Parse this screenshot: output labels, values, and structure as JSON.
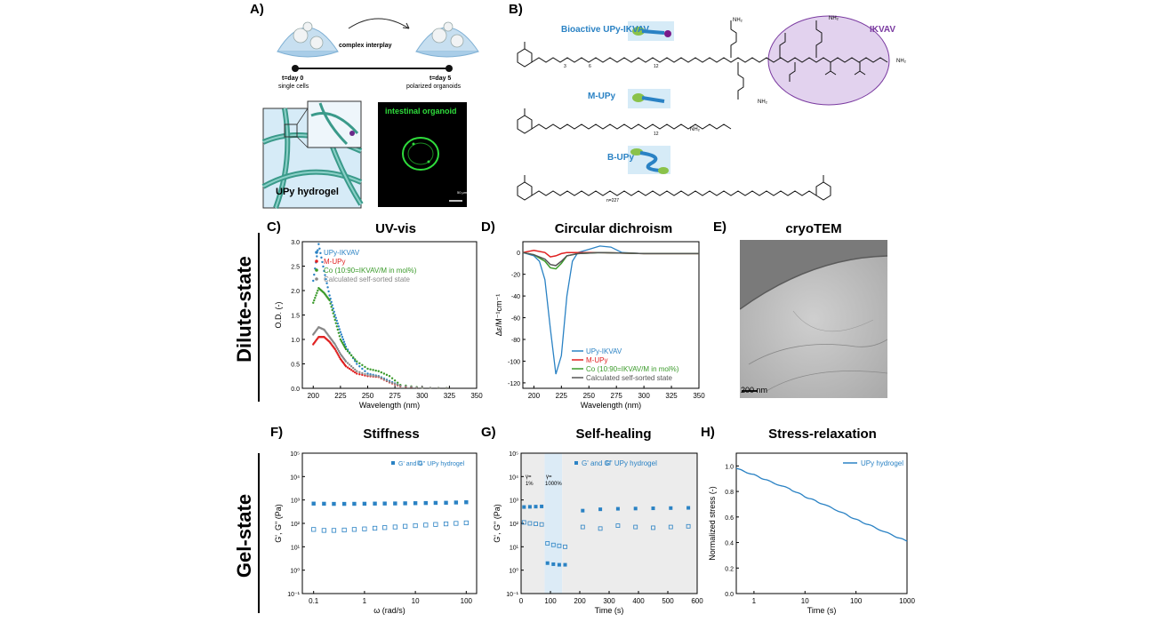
{
  "panelA": {
    "label": "A)",
    "interplay": "complex interplay",
    "t0": "t=day 0",
    "t0sub": "single cells",
    "t5": "t=day 5",
    "t5sub": "polarized organoids",
    "hydrogel": "UPy hydrogel",
    "organoid": "intestinal organoid",
    "scale": "50 µm"
  },
  "panelB": {
    "label": "B)",
    "m1": "Bioactive UPy-IKVAV",
    "m2": "M-UPy",
    "m3": "B-UPy",
    "ikvav": "IKVAV",
    "nh2": "NH₂",
    "sub12": "12",
    "sub227": "n=227",
    "sub3": "3",
    "sub6": "6"
  },
  "sides": {
    "dilute": "Dilute-state",
    "gel": "Gel-state"
  },
  "colors": {
    "blue": "#2a82c4",
    "red": "#e02020",
    "green": "#3a9a2a",
    "grey": "#888888",
    "purple": "#7a3aa0",
    "lavender": "#e2d2ee"
  },
  "charts": {
    "C": {
      "label": "C)",
      "title": "UV-vis",
      "xlabel": "Wavelength (nm)",
      "ylabel": "O.D. (-)",
      "xlim": [
        190,
        350
      ],
      "ylim": [
        0,
        3.0
      ],
      "xticks": [
        "200",
        "225",
        "250",
        "275",
        "300",
        "325",
        "350"
      ],
      "yticks": [
        "0.0",
        "0.5",
        "1.0",
        "1.5",
        "2.0",
        "2.5",
        "3.0"
      ],
      "legend": [
        "UPy-IKVAV",
        "M-UPy",
        "Co (10:90=IKVAV/M in mol%)",
        "Calculated self-sorted state"
      ]
    },
    "D": {
      "label": "D)",
      "title": "Circular dichroism",
      "xlabel": "Wavelength (nm)",
      "ylabel": "Δε/M⁻¹cm⁻¹",
      "xlim": [
        190,
        350
      ],
      "ylim": [
        -125,
        10
      ],
      "xticks": [
        "200",
        "225",
        "250",
        "275",
        "300",
        "325",
        "350"
      ],
      "yticks": [
        "0",
        "-20",
        "-40",
        "-60",
        "-80",
        "-100",
        "-120"
      ],
      "legend": [
        "UPy-IKVAV",
        "M-UPy",
        "Co (10:90=IKVAV/M in mol%)",
        "Calculated self-sorted state"
      ]
    },
    "E": {
      "label": "E)",
      "title": "cryoTEM",
      "scale": "200 nm"
    },
    "F": {
      "label": "F)",
      "title": "Stiffness",
      "xlabel": "ω (rad/s)",
      "ylabel": "G', G\" (Pa)",
      "xticks": [
        "0.1",
        "1",
        "10",
        "100"
      ],
      "yticks": [
        "10⁵",
        "10⁴",
        "10³",
        "10²",
        "10¹",
        "10⁰",
        "10⁻¹"
      ],
      "legend": "G' and    G\" UPy hydrogel"
    },
    "G": {
      "label": "G)",
      "title": "Self-healing",
      "xlabel": "Time (s)",
      "ylabel": "G', G\" (Pa)",
      "xlim": [
        0,
        600
      ],
      "xticks": [
        "0",
        "100",
        "200",
        "300",
        "400",
        "500",
        "600"
      ],
      "yticks": [
        "10⁵",
        "10⁴",
        "10³",
        "10²",
        "10¹",
        "10⁰",
        "10⁻¹"
      ],
      "legend": "G' and    G\" UPy hydrogel",
      "g1": "γ=",
      "g1b": "1%",
      "g2": "γ=",
      "g2b": "1000%"
    },
    "H": {
      "label": "H)",
      "title": "Stress-relaxation",
      "xlabel": "Time (s)",
      "ylabel": "Normalized stress (-)",
      "xticks": [
        "1",
        "10",
        "100",
        "1000"
      ],
      "yticks": [
        "1.0",
        "0.8",
        "0.6",
        "0.4",
        "0.2",
        "0.0"
      ],
      "legend": "UPy hydrogel"
    }
  },
  "chart_data": [
    {
      "type": "scatter",
      "title": "UV-vis",
      "xlabel": "Wavelength (nm)",
      "ylabel": "O.D. (-)",
      "xlim": [
        190,
        350
      ],
      "ylim": [
        0,
        3.0
      ],
      "series": [
        {
          "name": "UPy-IKVAV",
          "x": [
            200,
            205,
            210,
            215,
            220,
            225,
            230,
            240,
            250,
            260,
            270,
            280,
            300,
            330
          ],
          "y": [
            2.2,
            2.95,
            2.4,
            1.9,
            1.5,
            1.15,
            0.85,
            0.5,
            0.3,
            0.25,
            0.15,
            0.05,
            0.01,
            0.0
          ]
        },
        {
          "name": "M-UPy",
          "x": [
            200,
            205,
            210,
            215,
            220,
            225,
            230,
            240,
            250,
            260,
            270,
            280,
            300,
            330
          ],
          "y": [
            0.9,
            1.05,
            1.05,
            0.95,
            0.8,
            0.6,
            0.45,
            0.3,
            0.25,
            0.23,
            0.12,
            0.04,
            0.01,
            0.0
          ]
        },
        {
          "name": "Co (10:90=IKVAV/M in mol%)",
          "x": [
            200,
            205,
            210,
            215,
            220,
            225,
            230,
            240,
            250,
            260,
            270,
            280,
            300,
            330
          ],
          "y": [
            1.75,
            2.05,
            1.95,
            1.8,
            1.4,
            1.0,
            0.8,
            0.55,
            0.4,
            0.35,
            0.25,
            0.07,
            0.01,
            0.0
          ]
        },
        {
          "name": "Calculated self-sorted state",
          "x": [
            200,
            205,
            210,
            215,
            220,
            225,
            230,
            240,
            250,
            260,
            270,
            280,
            300,
            330
          ],
          "y": [
            1.1,
            1.25,
            1.2,
            1.05,
            0.9,
            0.7,
            0.55,
            0.35,
            0.27,
            0.24,
            0.13,
            0.05,
            0.01,
            0.0
          ]
        }
      ]
    },
    {
      "type": "line",
      "title": "Circular dichroism",
      "xlabel": "Wavelength (nm)",
      "ylabel": "Δε/M⁻¹cm⁻¹",
      "xlim": [
        190,
        350
      ],
      "ylim": [
        -125,
        10
      ],
      "series": [
        {
          "name": "UPy-IKVAV",
          "x": [
            190,
            200,
            205,
            210,
            215,
            220,
            225,
            230,
            235,
            240,
            250,
            260,
            270,
            280,
            300,
            330,
            350
          ],
          "y": [
            0,
            -3,
            -8,
            -25,
            -70,
            -112,
            -95,
            -40,
            -8,
            0,
            3,
            6,
            5,
            0,
            -1,
            -1,
            -1
          ]
        },
        {
          "name": "M-UPy",
          "x": [
            190,
            200,
            210,
            215,
            220,
            225,
            230,
            240,
            260,
            300,
            350
          ],
          "y": [
            0,
            2,
            0,
            -4,
            -3,
            -1,
            0,
            0,
            0,
            -1,
            -1
          ]
        },
        {
          "name": "Co (10:90=IKVAV/M in mol%)",
          "x": [
            190,
            200,
            210,
            215,
            220,
            225,
            230,
            240,
            260,
            300,
            350
          ],
          "y": [
            0,
            -2,
            -8,
            -14,
            -15,
            -10,
            -3,
            -1,
            0,
            -1,
            -1
          ]
        },
        {
          "name": "Calculated self-sorted state",
          "x": [
            190,
            200,
            210,
            215,
            220,
            225,
            230,
            240,
            260,
            300,
            350
          ],
          "y": [
            0,
            -2,
            -6,
            -11,
            -12,
            -8,
            -3,
            -1,
            0,
            -1,
            -1
          ]
        }
      ]
    },
    {
      "type": "scatter",
      "title": "Stiffness",
      "xlabel": "ω (rad/s)",
      "ylabel": "G', G\" (Pa)",
      "series": [
        {
          "name": "G'",
          "x": [
            0.1,
            0.16,
            0.25,
            0.4,
            0.63,
            1,
            1.6,
            2.5,
            4,
            6.3,
            10,
            16,
            25,
            40,
            63,
            100
          ],
          "y": [
            700,
            690,
            680,
            680,
            685,
            690,
            700,
            705,
            710,
            720,
            730,
            740,
            750,
            760,
            780,
            800
          ]
        },
        {
          "name": "G\"",
          "x": [
            0.1,
            0.16,
            0.25,
            0.4,
            0.63,
            1,
            1.6,
            2.5,
            4,
            6.3,
            10,
            16,
            25,
            40,
            63,
            100
          ],
          "y": [
            55,
            50,
            50,
            52,
            55,
            58,
            62,
            66,
            70,
            75,
            80,
            85,
            90,
            95,
            100,
            105
          ]
        }
      ]
    },
    {
      "type": "scatter",
      "title": "Self-healing",
      "xlabel": "Time (s)",
      "ylabel": "G', G\" (Pa)",
      "xlim": [
        0,
        600
      ],
      "series": [
        {
          "name": "G'",
          "x": [
            10,
            30,
            50,
            70,
            90,
            110,
            130,
            150,
            210,
            270,
            330,
            390,
            450,
            510,
            570
          ],
          "y": [
            500,
            510,
            520,
            530,
            2,
            1.8,
            1.7,
            1.7,
            350,
            400,
            420,
            430,
            440,
            450,
            460
          ]
        },
        {
          "name": "G\"",
          "x": [
            10,
            30,
            50,
            70,
            90,
            110,
            130,
            150,
            210,
            270,
            330,
            390,
            450,
            510,
            570
          ],
          "y": [
            110,
            100,
            95,
            90,
            14,
            12,
            11,
            10,
            70,
            60,
            80,
            70,
            65,
            70,
            75
          ]
        }
      ]
    },
    {
      "type": "line",
      "title": "Stress-relaxation",
      "xlabel": "Time (s)",
      "ylabel": "Normalized stress (-)",
      "ylim": [
        0,
        1.1
      ],
      "series": [
        {
          "name": "UPy hydrogel",
          "x": [
            0.45,
            1,
            2,
            5,
            10,
            20,
            50,
            100,
            200,
            500,
            1000
          ],
          "y": [
            0.98,
            0.93,
            0.88,
            0.82,
            0.76,
            0.71,
            0.64,
            0.58,
            0.53,
            0.46,
            0.41
          ]
        }
      ]
    }
  ]
}
